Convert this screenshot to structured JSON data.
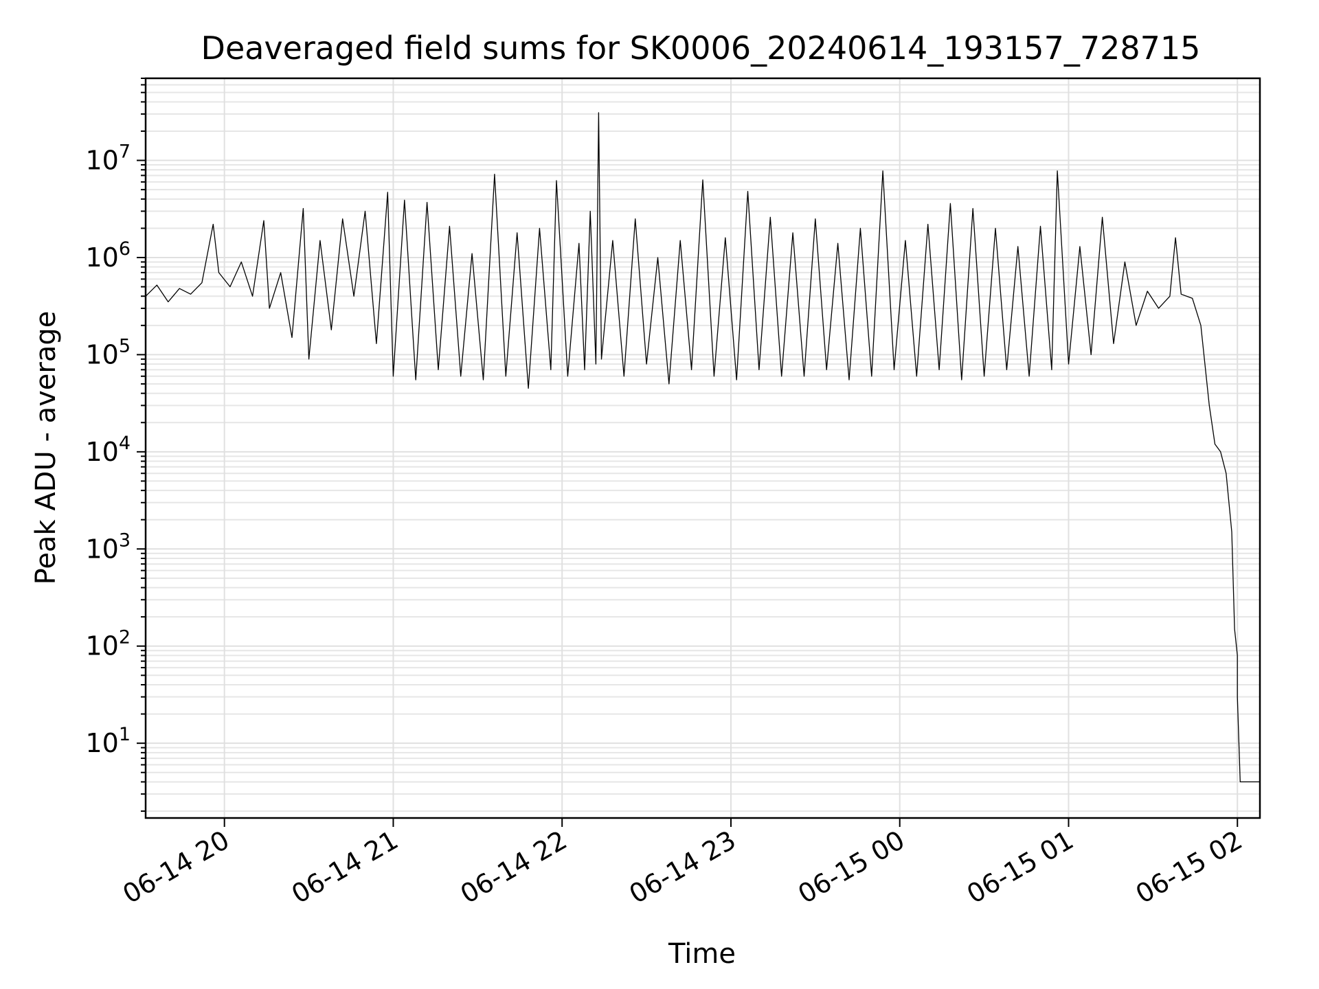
{
  "chart_data": {
    "type": "line",
    "title": "Deaveraged field sums for SK0006_20240614_193157_728715",
    "xlabel": "Time",
    "ylabel": "Peak ADU - average",
    "yscale": "log",
    "grid": true,
    "xlim": [
      "06-14 19:32",
      "06-15 02:08"
    ],
    "ylim": [
      1.7,
      70000000
    ],
    "xticks": [
      {
        "time": "06-14 20:00",
        "label": "06-14 20"
      },
      {
        "time": "06-14 21:00",
        "label": "06-14 21"
      },
      {
        "time": "06-14 22:00",
        "label": "06-14 22"
      },
      {
        "time": "06-14 23:00",
        "label": "06-14 23"
      },
      {
        "time": "06-15 00:00",
        "label": "06-15 00"
      },
      {
        "time": "06-15 01:00",
        "label": "06-15 01"
      },
      {
        "time": "06-15 02:00",
        "label": "06-15 02"
      }
    ],
    "yticks": [
      {
        "value": 10,
        "base": "10",
        "exp": "1"
      },
      {
        "value": 100,
        "base": "10",
        "exp": "2"
      },
      {
        "value": 1000,
        "base": "10",
        "exp": "3"
      },
      {
        "value": 10000,
        "base": "10",
        "exp": "4"
      },
      {
        "value": 100000,
        "base": "10",
        "exp": "5"
      },
      {
        "value": 1000000,
        "base": "10",
        "exp": "6"
      },
      {
        "value": 10000000,
        "base": "10",
        "exp": "7"
      }
    ],
    "series": [
      {
        "line_color": "#000000",
        "points": [
          [
            "06-14 19:32",
            400000
          ],
          [
            "06-14 19:36",
            520000
          ],
          [
            "06-14 19:40",
            350000
          ],
          [
            "06-14 19:44",
            480000
          ],
          [
            "06-14 19:48",
            420000
          ],
          [
            "06-14 19:52",
            550000
          ],
          [
            "06-14 19:56",
            2200000
          ],
          [
            "06-14 19:58",
            700000
          ],
          [
            "06-14 20:02",
            500000
          ],
          [
            "06-14 20:06",
            900000
          ],
          [
            "06-14 20:10",
            400000
          ],
          [
            "06-14 20:14",
            2400000
          ],
          [
            "06-14 20:16",
            300000
          ],
          [
            "06-14 20:20",
            700000
          ],
          [
            "06-14 20:24",
            150000
          ],
          [
            "06-14 20:28",
            3200000
          ],
          [
            "06-14 20:30",
            90000
          ],
          [
            "06-14 20:34",
            1500000
          ],
          [
            "06-14 20:38",
            180000
          ],
          [
            "06-14 20:42",
            2500000
          ],
          [
            "06-14 20:46",
            400000
          ],
          [
            "06-14 20:50",
            3000000
          ],
          [
            "06-14 20:54",
            130000
          ],
          [
            "06-14 20:58",
            4700000
          ],
          [
            "06-14 21:00",
            60000
          ],
          [
            "06-14 21:04",
            3900000
          ],
          [
            "06-14 21:08",
            55000
          ],
          [
            "06-14 21:12",
            3700000
          ],
          [
            "06-14 21:16",
            70000
          ],
          [
            "06-14 21:20",
            2100000
          ],
          [
            "06-14 21:24",
            60000
          ],
          [
            "06-14 21:28",
            1100000
          ],
          [
            "06-14 21:32",
            55000
          ],
          [
            "06-14 21:36",
            7200000
          ],
          [
            "06-14 21:40",
            60000
          ],
          [
            "06-14 21:44",
            1800000
          ],
          [
            "06-14 21:48",
            45000
          ],
          [
            "06-14 21:52",
            2000000
          ],
          [
            "06-14 21:56",
            70000
          ],
          [
            "06-14 21:58",
            6200000
          ],
          [
            "06-14 22:02",
            60000
          ],
          [
            "06-14 22:06",
            1400000
          ],
          [
            "06-14 22:08",
            70000
          ],
          [
            "06-14 22:10",
            3000000
          ],
          [
            "06-14 22:12",
            80000
          ],
          [
            "06-14 22:13",
            31000000
          ],
          [
            "06-14 22:14",
            90000
          ],
          [
            "06-14 22:18",
            1500000
          ],
          [
            "06-14 22:22",
            60000
          ],
          [
            "06-14 22:26",
            2500000
          ],
          [
            "06-14 22:30",
            80000
          ],
          [
            "06-14 22:34",
            1000000
          ],
          [
            "06-14 22:38",
            50000
          ],
          [
            "06-14 22:42",
            1500000
          ],
          [
            "06-14 22:46",
            70000
          ],
          [
            "06-14 22:50",
            6300000
          ],
          [
            "06-14 22:54",
            60000
          ],
          [
            "06-14 22:58",
            1600000
          ],
          [
            "06-14 23:02",
            55000
          ],
          [
            "06-14 23:06",
            4800000
          ],
          [
            "06-14 23:10",
            70000
          ],
          [
            "06-14 23:14",
            2600000
          ],
          [
            "06-14 23:18",
            60000
          ],
          [
            "06-14 23:22",
            1800000
          ],
          [
            "06-14 23:26",
            60000
          ],
          [
            "06-14 23:30",
            2500000
          ],
          [
            "06-14 23:34",
            70000
          ],
          [
            "06-14 23:38",
            1400000
          ],
          [
            "06-14 23:42",
            55000
          ],
          [
            "06-14 23:46",
            2000000
          ],
          [
            "06-14 23:50",
            60000
          ],
          [
            "06-14 23:54",
            7800000
          ],
          [
            "06-14 23:58",
            70000
          ],
          [
            "06-15 00:02",
            1500000
          ],
          [
            "06-15 00:06",
            60000
          ],
          [
            "06-15 00:10",
            2200000
          ],
          [
            "06-15 00:14",
            70000
          ],
          [
            "06-15 00:18",
            3600000
          ],
          [
            "06-15 00:22",
            55000
          ],
          [
            "06-15 00:26",
            3200000
          ],
          [
            "06-15 00:30",
            60000
          ],
          [
            "06-15 00:34",
            2000000
          ],
          [
            "06-15 00:38",
            70000
          ],
          [
            "06-15 00:42",
            1300000
          ],
          [
            "06-15 00:46",
            60000
          ],
          [
            "06-15 00:50",
            2100000
          ],
          [
            "06-15 00:54",
            70000
          ],
          [
            "06-15 00:56",
            7800000
          ],
          [
            "06-15 01:00",
            80000
          ],
          [
            "06-15 01:04",
            1300000
          ],
          [
            "06-15 01:08",
            100000
          ],
          [
            "06-15 01:12",
            2600000
          ],
          [
            "06-15 01:16",
            130000
          ],
          [
            "06-15 01:20",
            900000
          ],
          [
            "06-15 01:24",
            200000
          ],
          [
            "06-15 01:28",
            450000
          ],
          [
            "06-15 01:32",
            300000
          ],
          [
            "06-15 01:36",
            400000
          ],
          [
            "06-15 01:38",
            1600000
          ],
          [
            "06-15 01:40",
            420000
          ],
          [
            "06-15 01:44",
            380000
          ],
          [
            "06-15 01:47",
            200000
          ],
          [
            "06-15 01:50",
            30000
          ],
          [
            "06-15 01:52",
            12000
          ],
          [
            "06-15 01:54",
            10000
          ],
          [
            "06-15 01:56",
            6000
          ],
          [
            "06-15 01:58",
            1500
          ],
          [
            "06-15 01:59",
            150
          ],
          [
            "06-15 02:00",
            80
          ],
          [
            "06-15 02:00",
            30
          ],
          [
            "06-15 02:01",
            4
          ],
          [
            "06-15 02:08",
            4
          ]
        ]
      }
    ]
  }
}
